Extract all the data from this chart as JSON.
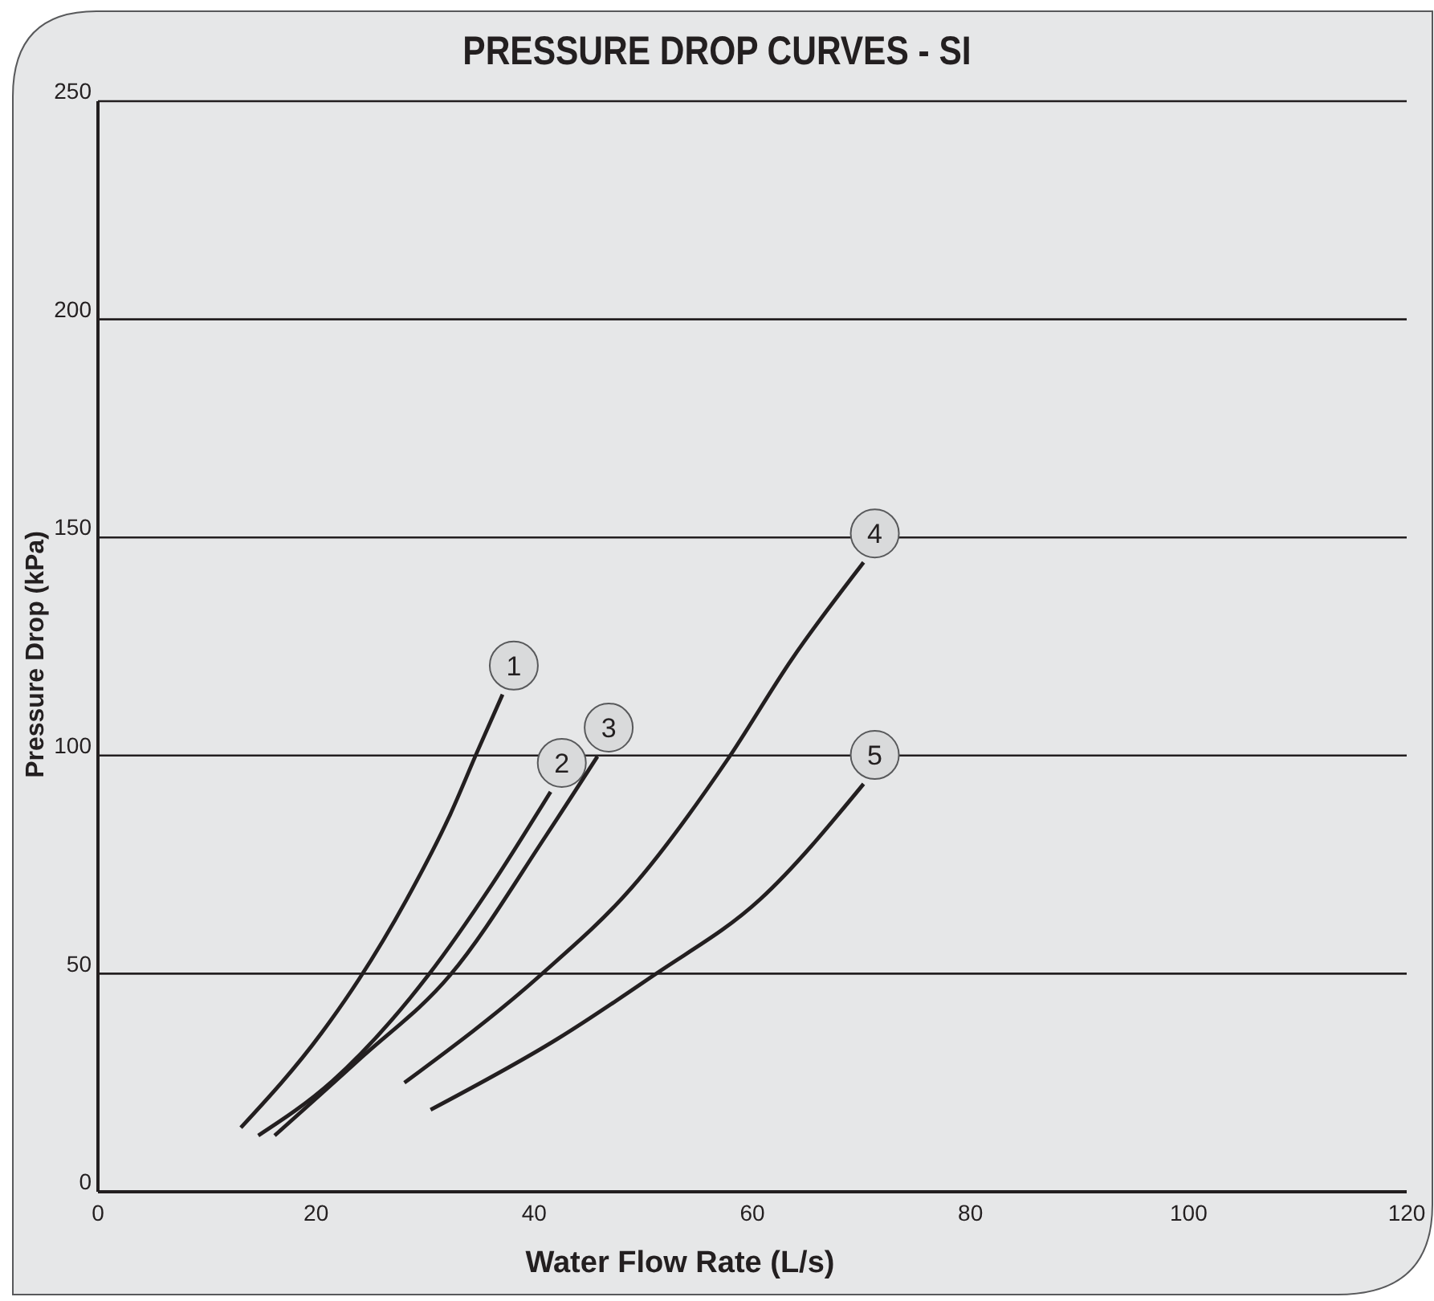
{
  "chart_data": {
    "type": "line",
    "title": "PRESSURE DROP CURVES - SI",
    "xlabel": "Water Flow Rate (L/s)",
    "ylabel": "Pressure Drop (kPa)",
    "xlim": [
      0,
      120
    ],
    "xticks": [
      0,
      20,
      40,
      60,
      80,
      100,
      120
    ],
    "ylim": [
      0,
      250
    ],
    "yticks": [
      0,
      50,
      100,
      150,
      200,
      250
    ],
    "grid": "y",
    "legend": false,
    "marker": "none",
    "line_style": "solid",
    "series": [
      {
        "name": "1",
        "color": "#231f20",
        "x": [
          13.1,
          20.5,
          23.9,
          28.3,
          32.3,
          34.8,
          37.1
        ],
        "values": [
          14.7,
          36.4,
          48.6,
          67,
          86.5,
          101,
          114
        ]
      },
      {
        "name": "2",
        "color": "#231f20",
        "x": [
          14.7,
          21.5,
          30.3,
          36.2,
          41.5
        ],
        "values": [
          12.9,
          25.4,
          49.7,
          70.7,
          91.7
        ]
      },
      {
        "name": "3",
        "color": "#231f20",
        "x": [
          16.2,
          23.9,
          32.3,
          41.1,
          45.8
        ],
        "values": [
          12.9,
          30.2,
          49.7,
          81.7,
          99.8
        ]
      },
      {
        "name": "4",
        "color": "#231f20",
        "x": [
          28.1,
          40.6,
          48.9,
          57.7,
          63.6,
          70.2
        ],
        "values": [
          25,
          49.7,
          69.6,
          99,
          122,
          144.3
        ]
      },
      {
        "name": "5",
        "color": "#231f20",
        "x": [
          30.5,
          42.1,
          51,
          60.7,
          70.2
        ],
        "values": [
          18.8,
          35,
          49.7,
          67,
          93.5
        ]
      }
    ]
  }
}
